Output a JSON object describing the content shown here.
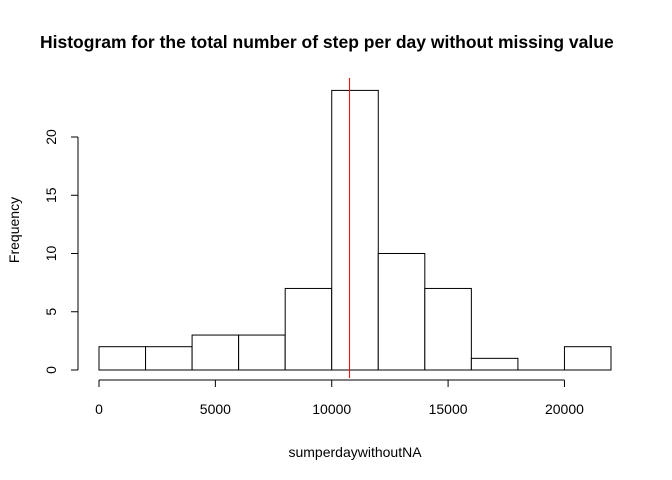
{
  "chart_data": {
    "type": "bar",
    "title": "Histogram for the total number of step per day without missing value",
    "xlabel": "sumperdaywithoutNA",
    "ylabel": "Frequency",
    "bins": [
      {
        "from": 0,
        "to": 2000,
        "count": 2
      },
      {
        "from": 2000,
        "to": 4000,
        "count": 2
      },
      {
        "from": 4000,
        "to": 6000,
        "count": 3
      },
      {
        "from": 6000,
        "to": 8000,
        "count": 3
      },
      {
        "from": 8000,
        "to": 10000,
        "count": 7
      },
      {
        "from": 10000,
        "to": 12000,
        "count": 24
      },
      {
        "from": 12000,
        "to": 14000,
        "count": 10
      },
      {
        "from": 14000,
        "to": 16000,
        "count": 7
      },
      {
        "from": 16000,
        "to": 18000,
        "count": 1
      },
      {
        "from": 18000,
        "to": 20000,
        "count": 0
      },
      {
        "from": 20000,
        "to": 22000,
        "count": 2
      }
    ],
    "xlim": [
      0,
      22000
    ],
    "ylim": [
      0,
      24
    ],
    "xticks": [
      0,
      5000,
      10000,
      15000,
      20000
    ],
    "xtick_labels": [
      "0",
      "5000",
      "10000",
      "15000",
      "20000"
    ],
    "yticks": [
      0,
      5,
      10,
      15,
      20
    ],
    "ytick_labels": [
      "0",
      "5",
      "10",
      "15",
      "20"
    ],
    "vline": {
      "x": 10766,
      "color": "#ff0000"
    },
    "bar_fill": "#ffffff",
    "bar_stroke": "#000000",
    "grid": false
  }
}
